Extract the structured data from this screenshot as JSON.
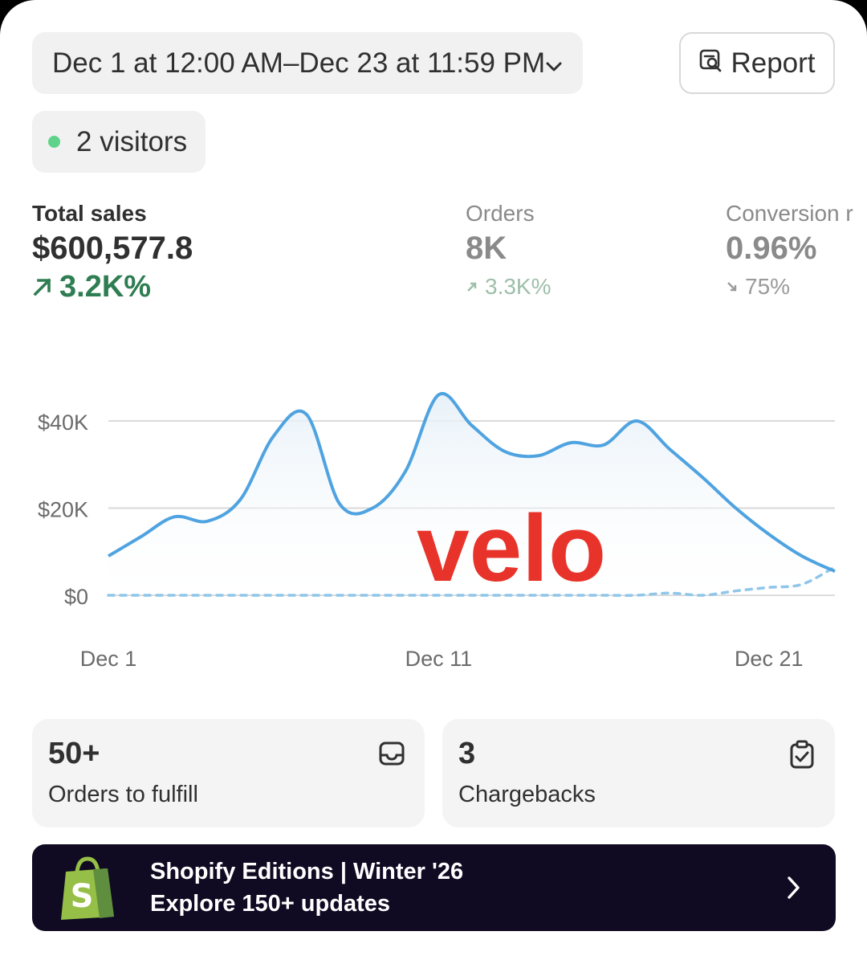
{
  "header": {
    "date_range": "Dec 1 at 12:00 AM–Dec 23 at 11:59 PM",
    "report_label": "Report"
  },
  "visitors": {
    "label": "2 visitors",
    "dot_color": "#5fd389"
  },
  "metrics": [
    {
      "label": "Total sales",
      "value": "$600,577.8",
      "delta": "3.2K%",
      "direction": "up"
    },
    {
      "label": "Orders",
      "value": "8K",
      "delta": "3.3K%",
      "direction": "up"
    },
    {
      "label": "Conversion r",
      "value": "0.96%",
      "delta": "75%",
      "direction": "down"
    }
  ],
  "chart_data": {
    "type": "line",
    "watermark": "velo",
    "x_tick_labels": [
      "Dec 1",
      "Dec 11",
      "Dec 21"
    ],
    "y_tick_labels": [
      "$0",
      "$20K",
      "$40K"
    ],
    "ylim": [
      0,
      40000
    ],
    "grid": true,
    "x": [
      1,
      2,
      3,
      4,
      5,
      6,
      7,
      8,
      9,
      10,
      11,
      12,
      13,
      14,
      15,
      16,
      17,
      18,
      19,
      20,
      21,
      22,
      23
    ],
    "series": [
      {
        "style": "solid",
        "color": "#4fa3e0",
        "values": [
          9000,
          13500,
          18000,
          17000,
          22000,
          36500,
          41500,
          21000,
          20000,
          28500,
          46000,
          39000,
          33000,
          32000,
          35000,
          34500,
          40000,
          33500,
          27000,
          20000,
          14000,
          9000,
          5500
        ]
      },
      {
        "style": "dotted",
        "color": "#8fc6ea",
        "values": [
          0,
          0,
          0,
          0,
          0,
          0,
          0,
          0,
          0,
          0,
          0,
          0,
          0,
          0,
          0,
          0,
          0,
          500,
          0,
          1000,
          1800,
          2500,
          6500
        ]
      }
    ]
  },
  "cards": [
    {
      "value": "50+",
      "label": "Orders to fulfill",
      "icon": "inbox-icon"
    },
    {
      "value": "3",
      "label": "Chargebacks",
      "icon": "clipboard-check-icon"
    }
  ],
  "banner": {
    "line1": "Shopify Editions | Winter '26",
    "line2": "Explore 150+ updates",
    "logo_letter": "S",
    "logo_color": "#95bf47"
  },
  "colors": {
    "positive": "#2f7d52",
    "muted_positive": "#9dbfa9",
    "banner_bg": "#100a22",
    "line": "#4fa3e0",
    "watermark": "#e8332a"
  }
}
